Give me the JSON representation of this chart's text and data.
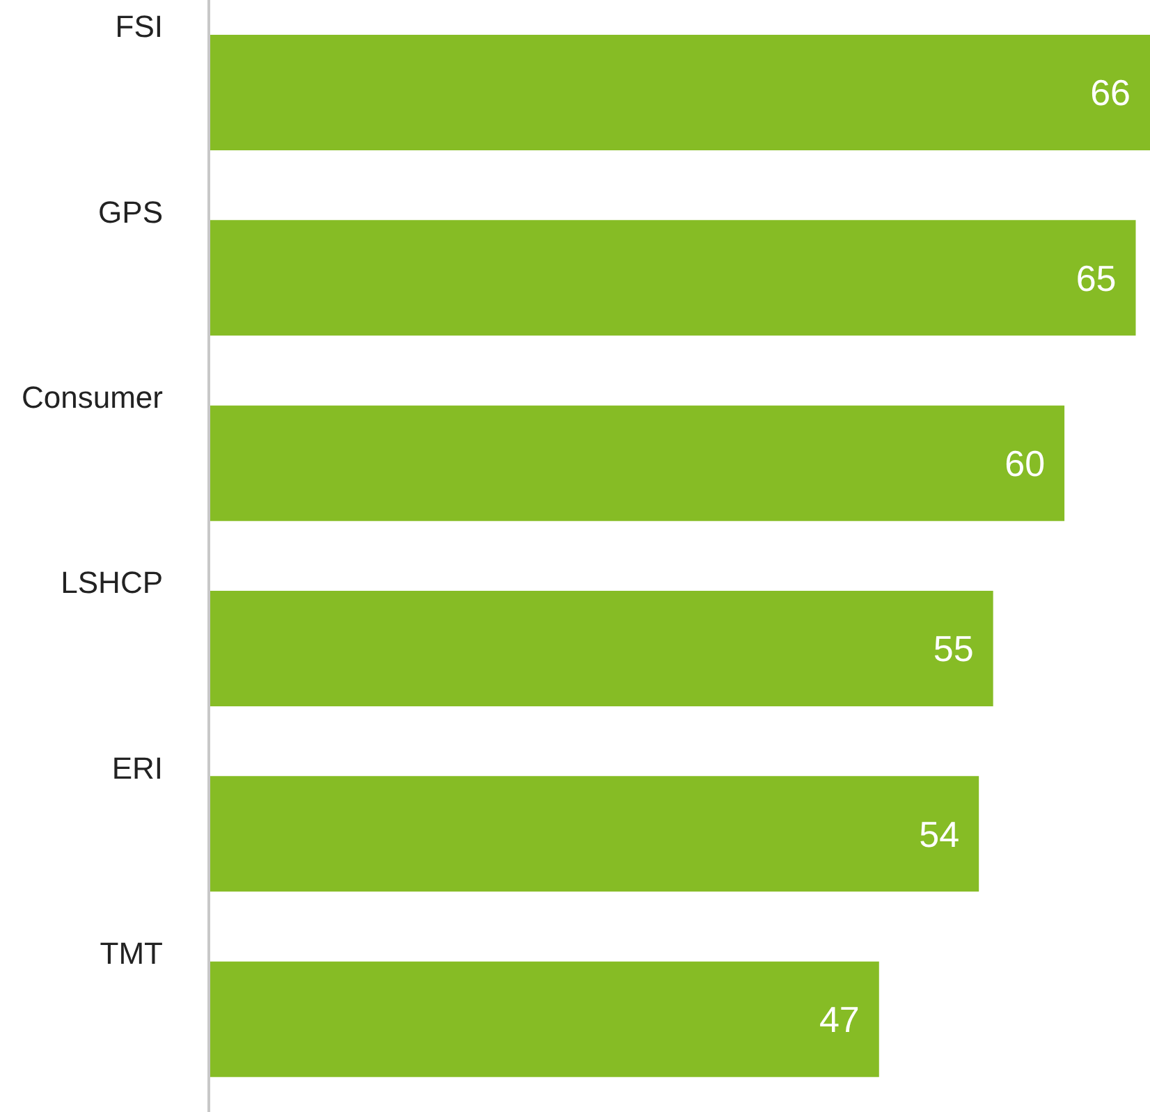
{
  "chart_data": {
    "type": "bar",
    "orientation": "horizontal",
    "categories": [
      "FSI",
      "GPS",
      "Consumer",
      "LSHCP",
      "ERI",
      "TMT"
    ],
    "values": [
      66,
      65,
      60,
      55,
      54,
      47
    ],
    "color": "#86bc25",
    "data_labels": true,
    "tick_labels": "y"
  }
}
